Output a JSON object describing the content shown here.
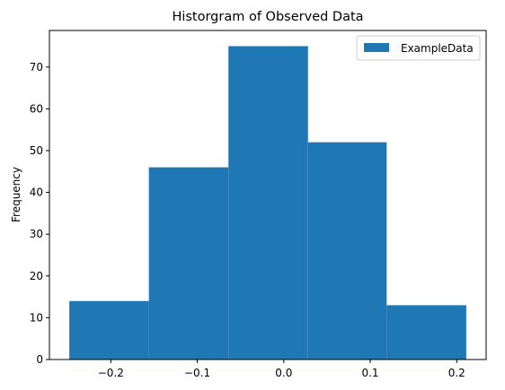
{
  "chart_data": {
    "type": "bar",
    "title": "Historgram of Observed Data",
    "xlabel": "",
    "ylabel": "Frequency",
    "bins": [
      {
        "start": -0.248,
        "end": -0.156,
        "count": 14
      },
      {
        "start": -0.156,
        "end": -0.064,
        "count": 46
      },
      {
        "start": -0.064,
        "end": 0.028,
        "count": 75
      },
      {
        "start": 0.028,
        "end": 0.119,
        "count": 52
      },
      {
        "start": 0.119,
        "end": 0.211,
        "count": 13
      }
    ],
    "series": [
      {
        "name": "ExampleData",
        "color": "#1f77b4"
      }
    ],
    "xlim": [
      -0.271,
      0.234
    ],
    "ylim": [
      0,
      78.75
    ],
    "xticks": [
      -0.2,
      -0.1,
      0.0,
      0.1,
      0.2
    ],
    "xtick_labels": [
      "−0.2",
      "−0.1",
      "0.0",
      "0.1",
      "0.2"
    ],
    "yticks": [
      0,
      10,
      20,
      30,
      40,
      50,
      60,
      70
    ],
    "ytick_labels": [
      "0",
      "10",
      "20",
      "30",
      "40",
      "50",
      "60",
      "70"
    ],
    "grid": false,
    "legend": "upper right"
  }
}
